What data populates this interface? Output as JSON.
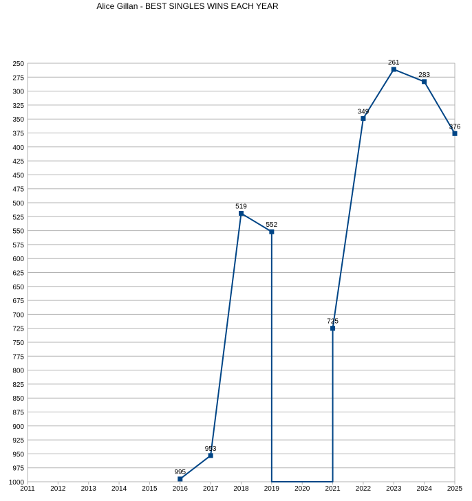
{
  "chart_data": {
    "type": "line",
    "title": "Alice Gillan - BEST SINGLES WINS EACH YEAR",
    "x": [
      "2011",
      "2012",
      "2013",
      "2014",
      "2015",
      "2016",
      "2017",
      "2018",
      "2019",
      "2020",
      "2021",
      "2022",
      "2023",
      "2024",
      "2025"
    ],
    "y_ticks": [
      "250",
      "275",
      "300",
      "325",
      "350",
      "375",
      "400",
      "425",
      "450",
      "475",
      "500",
      "525",
      "550",
      "575",
      "600",
      "625",
      "650",
      "675",
      "700",
      "725",
      "750",
      "775",
      "800",
      "825",
      "850",
      "875",
      "900",
      "925",
      "950",
      "975",
      "1000"
    ],
    "ylim": [
      250,
      1000
    ],
    "y_reversed": true,
    "grid": true,
    "series": [
      {
        "color": "#004586",
        "points": [
          {
            "x": "2016",
            "y": 995,
            "label": "995"
          },
          {
            "x": "2017",
            "y": 953,
            "label": "953"
          },
          {
            "x": "2018",
            "y": 519,
            "label": "519"
          },
          {
            "x": "2019",
            "y": 552,
            "label": "552"
          },
          {
            "x": "2019",
            "y": 1000,
            "label": ""
          },
          {
            "x": "2021",
            "y": 1000,
            "label": ""
          },
          {
            "x": "2021",
            "y": 725,
            "label": "725"
          },
          {
            "x": "2022",
            "y": 349,
            "label": "349"
          },
          {
            "x": "2023",
            "y": 261,
            "label": "261"
          },
          {
            "x": "2024",
            "y": 283,
            "label": "283"
          },
          {
            "x": "2025",
            "y": 376,
            "label": "376"
          }
        ]
      }
    ]
  }
}
